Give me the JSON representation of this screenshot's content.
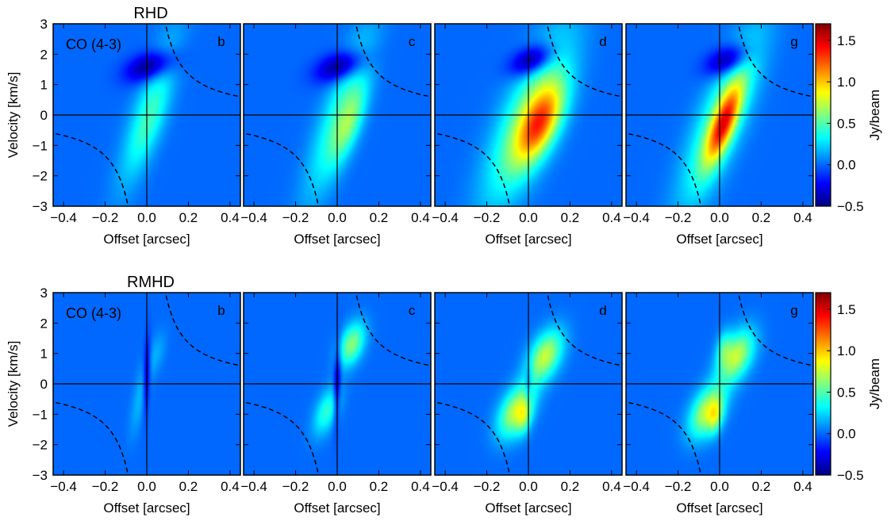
{
  "chart_data": [
    {
      "type": "heatmap",
      "title": "RHD",
      "row": 0,
      "species_label": "CO (4-3)",
      "ylabel": "Velocity [km/s]",
      "xlabel": "Offset [arcsec]",
      "xlim": [
        -0.45,
        0.45
      ],
      "ylim": [
        -3,
        3
      ],
      "xticks": [
        "−0.4",
        "−0.2",
        "0.0",
        "0.2",
        "0.4"
      ],
      "yticks": [
        "−3",
        "−2",
        "−1",
        "0",
        "1",
        "2",
        "3"
      ],
      "colorbar": {
        "label": "Jy/beam",
        "range": [
          -0.5,
          1.7
        ],
        "ticks": [
          "1.5",
          "1.0",
          "0.5",
          "0.0",
          "−0.5"
        ],
        "colormap": "jet"
      },
      "background_color": "#0066ff",
      "panels": [
        {
          "letter": "b",
          "blobs": [
            {
              "x": 0.01,
              "v": 0.2,
              "sx": 0.1,
              "sv": 1.8,
              "rho": 0.82,
              "a": 0.32
            },
            {
              "x": 0.02,
              "v": -0.3,
              "sx": 0.07,
              "sv": 1.0,
              "rho": 0.7,
              "a": 0.18
            },
            {
              "x": 0.02,
              "v": 1.6,
              "sx": 0.08,
              "sv": 0.35,
              "rho": 0.4,
              "a": -0.55
            }
          ]
        },
        {
          "letter": "c",
          "blobs": [
            {
              "x": 0.01,
              "v": 0.0,
              "sx": 0.11,
              "sv": 1.9,
              "rho": 0.82,
              "a": 0.42
            },
            {
              "x": 0.06,
              "v": -0.3,
              "sx": 0.06,
              "sv": 0.9,
              "rho": 0.7,
              "a": 0.42
            },
            {
              "x": 0.02,
              "v": 1.6,
              "sx": 0.08,
              "sv": 0.35,
              "rho": 0.4,
              "a": -0.55
            }
          ]
        },
        {
          "letter": "d",
          "blobs": [
            {
              "x": 0.0,
              "v": -0.1,
              "sx": 0.14,
              "sv": 1.9,
              "rho": 0.75,
              "a": 0.62
            },
            {
              "x": 0.06,
              "v": -0.3,
              "sx": 0.08,
              "sv": 0.9,
              "rho": 0.6,
              "a": 0.9
            },
            {
              "x": 0.02,
              "v": 1.8,
              "sx": 0.07,
              "sv": 0.35,
              "rho": 0.4,
              "a": -0.6
            }
          ]
        },
        {
          "letter": "g",
          "blobs": [
            {
              "x": 0.01,
              "v": -0.1,
              "sx": 0.13,
              "sv": 1.9,
              "rho": 0.8,
              "a": 0.58
            },
            {
              "x": 0.02,
              "v": -0.3,
              "sx": 0.06,
              "sv": 0.9,
              "rho": 0.75,
              "a": 0.95
            },
            {
              "x": 0.04,
              "v": 1.8,
              "sx": 0.07,
              "sv": 0.35,
              "rho": 0.4,
              "a": -0.55
            }
          ]
        }
      ]
    },
    {
      "type": "heatmap",
      "title": "RMHD",
      "row": 1,
      "species_label": "CO (4-3)",
      "ylabel": "Velocity [km/s]",
      "xlabel": "Offset [arcsec]",
      "xlim": [
        -0.45,
        0.45
      ],
      "ylim": [
        -3,
        3
      ],
      "xticks": [
        "−0.4",
        "−0.2",
        "0.0",
        "0.2",
        "0.4"
      ],
      "yticks": [
        "−3",
        "−2",
        "−1",
        "0",
        "1",
        "2",
        "3"
      ],
      "colorbar": {
        "label": "Jy/beam",
        "range": [
          -0.5,
          1.7
        ],
        "ticks": [
          "1.5",
          "1.0",
          "0.5",
          "0.0",
          "−0.5"
        ],
        "colormap": "jet"
      },
      "background_color": "#0066ff",
      "panels": [
        {
          "letter": "b",
          "blobs": [
            {
              "x": -0.03,
              "v": -0.4,
              "sx": 0.035,
              "sv": 0.9,
              "rho": 0.7,
              "a": 0.18
            },
            {
              "x": 0.05,
              "v": 1.0,
              "sx": 0.03,
              "sv": 0.5,
              "rho": 0.5,
              "a": 0.14
            },
            {
              "x": 0.0,
              "v": 0.3,
              "sx": 0.012,
              "sv": 0.8,
              "rho": 0.3,
              "a": -0.4
            }
          ]
        },
        {
          "letter": "c",
          "blobs": [
            {
              "x": -0.05,
              "v": -0.9,
              "sx": 0.045,
              "sv": 0.55,
              "rho": 0.5,
              "a": 0.42
            },
            {
              "x": 0.07,
              "v": 1.3,
              "sx": 0.045,
              "sv": 0.5,
              "rho": 0.4,
              "a": 0.62
            },
            {
              "x": 0.0,
              "v": 0.0,
              "sx": 0.012,
              "sv": 0.9,
              "rho": 0.3,
              "a": -0.4
            }
          ]
        },
        {
          "letter": "d",
          "blobs": [
            {
              "x": -0.06,
              "v": -0.9,
              "sx": 0.06,
              "sv": 0.6,
              "rho": 0.45,
              "a": 0.75
            },
            {
              "x": 0.08,
              "v": 0.9,
              "sx": 0.06,
              "sv": 0.6,
              "rho": 0.45,
              "a": 0.75
            },
            {
              "x": -0.02,
              "v": -1.1,
              "sx": 0.025,
              "sv": 0.4,
              "rho": 0.3,
              "a": 0.35
            },
            {
              "x": 0.0,
              "v": 0.0,
              "sx": 0.012,
              "sv": 0.5,
              "rho": 0.3,
              "a": -0.25
            }
          ]
        },
        {
          "letter": "g",
          "blobs": [
            {
              "x": -0.06,
              "v": -0.9,
              "sx": 0.06,
              "sv": 0.6,
              "rho": 0.45,
              "a": 0.75
            },
            {
              "x": 0.08,
              "v": 0.9,
              "sx": 0.06,
              "sv": 0.6,
              "rho": 0.45,
              "a": 0.75
            },
            {
              "x": -0.02,
              "v": -1.1,
              "sx": 0.025,
              "sv": 0.4,
              "rho": 0.3,
              "a": 0.4
            },
            {
              "x": 0.02,
              "v": 1.2,
              "sx": 0.025,
              "sv": 0.4,
              "rho": 0.3,
              "a": 0.3
            }
          ]
        }
      ]
    }
  ]
}
